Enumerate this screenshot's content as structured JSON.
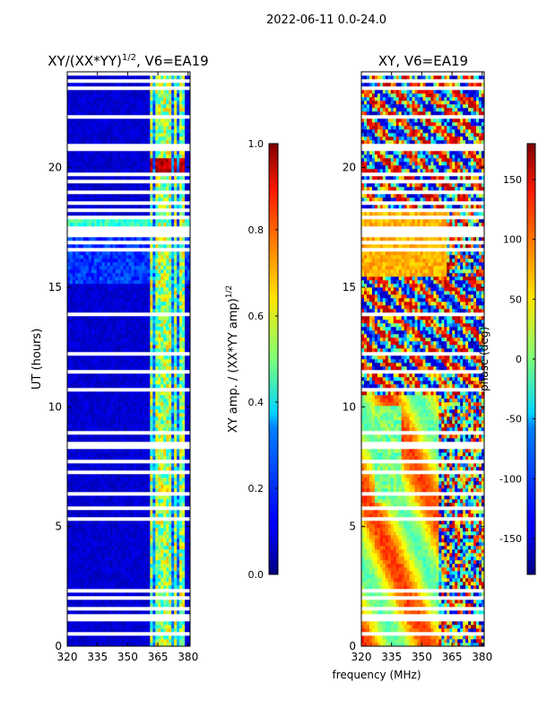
{
  "suptitle": "2022-06-11 0.0-24.0",
  "chart_data": [
    {
      "type": "heatmap",
      "title_prefix": "XY/(XX*YY)",
      "title_exponent": "1/2",
      "title_suffix": ", V6=EA19",
      "xlabel": "",
      "ylabel": "UT (hours)",
      "xlim": [
        320,
        381
      ],
      "ylim": [
        0,
        24
      ],
      "x_ticks": [
        320,
        335,
        350,
        365,
        380
      ],
      "y_ticks": [
        0,
        5,
        10,
        15,
        20
      ],
      "colorbar": {
        "label_text": "XY amp. / (XX*YY amp)",
        "label_exponent": "1/2",
        "range": [
          0.0,
          1.0
        ],
        "tick_labels": [
          "0.0",
          "0.2",
          "0.4",
          "0.6",
          "0.8",
          "1.0"
        ],
        "tick_values": [
          0.0,
          0.2,
          0.4,
          0.6,
          0.8,
          1.0
        ],
        "colormap": "jet"
      }
    },
    {
      "type": "heatmap",
      "title": "XY, V6=EA19",
      "xlabel": "frequency (MHz)",
      "ylabel": "",
      "xlim": [
        320,
        381
      ],
      "ylim": [
        0,
        24
      ],
      "x_ticks": [
        320,
        335,
        350,
        365,
        380
      ],
      "y_ticks": [
        0,
        5,
        10,
        15,
        20
      ],
      "colorbar": {
        "label_text": "phase (deg)",
        "range": [
          -180,
          180
        ],
        "tick_labels": [
          "-150",
          "-100",
          "-50",
          "0",
          "50",
          "100",
          "150"
        ],
        "tick_values": [
          -150,
          -100,
          -50,
          0,
          50,
          100,
          150
        ],
        "colormap": "jet"
      }
    }
  ]
}
